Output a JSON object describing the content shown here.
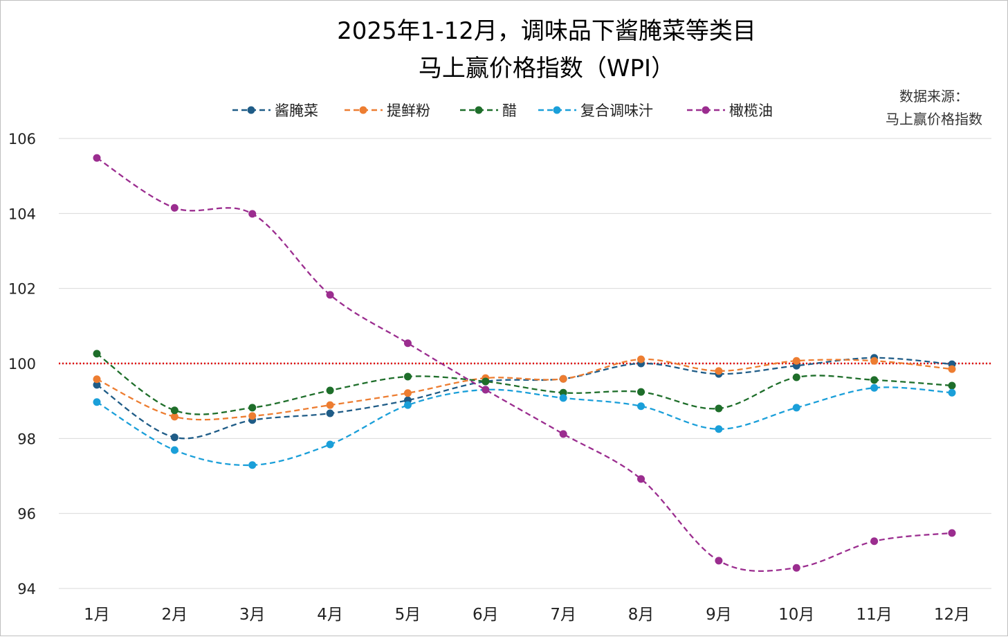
{
  "chart_data": {
    "type": "line",
    "title": [
      "2025年1-12月，调味品下酱腌菜等类目",
      "马上赢价格指数（WPI）"
    ],
    "source_note": [
      "数据来源：",
      "马上赢价格指数"
    ],
    "categories": [
      "1月",
      "2月",
      "3月",
      "4月",
      "5月",
      "6月",
      "7月",
      "8月",
      "9月",
      "10月",
      "11月",
      "12月"
    ],
    "ylim": [
      94,
      106
    ],
    "yticks": [
      94,
      96,
      98,
      100,
      102,
      104,
      106
    ],
    "grid": true,
    "legend_position": "top",
    "reference_line": {
      "value": 100,
      "color": "#e00000",
      "style": "dotted"
    },
    "series": [
      {
        "name": "酱腌菜",
        "color": "#1f5c87",
        "values": [
          99.43,
          98.03,
          98.49,
          98.67,
          99.02,
          99.52,
          99.59,
          100.0,
          99.72,
          99.94,
          100.15,
          99.98
        ]
      },
      {
        "name": "提鲜粉",
        "color": "#ed7d31",
        "values": [
          99.58,
          98.58,
          98.6,
          98.89,
          99.21,
          99.61,
          99.59,
          100.11,
          99.8,
          100.07,
          100.07,
          99.85
        ]
      },
      {
        "name": "醋",
        "color": "#1e6e2a",
        "values": [
          100.26,
          98.75,
          98.82,
          99.28,
          99.65,
          99.52,
          99.22,
          99.24,
          98.8,
          99.63,
          99.56,
          99.41
        ]
      },
      {
        "name": "复合调味汁",
        "color": "#1a9fd9",
        "values": [
          98.97,
          97.69,
          97.29,
          97.84,
          98.89,
          99.3,
          99.08,
          98.86,
          98.25,
          98.82,
          99.35,
          99.22
        ]
      },
      {
        "name": "橄榄油",
        "color": "#9b2d8f",
        "values": [
          105.48,
          104.15,
          103.99,
          101.83,
          100.54,
          99.3,
          98.12,
          96.92,
          94.74,
          94.55,
          95.26,
          95.48
        ]
      }
    ]
  }
}
